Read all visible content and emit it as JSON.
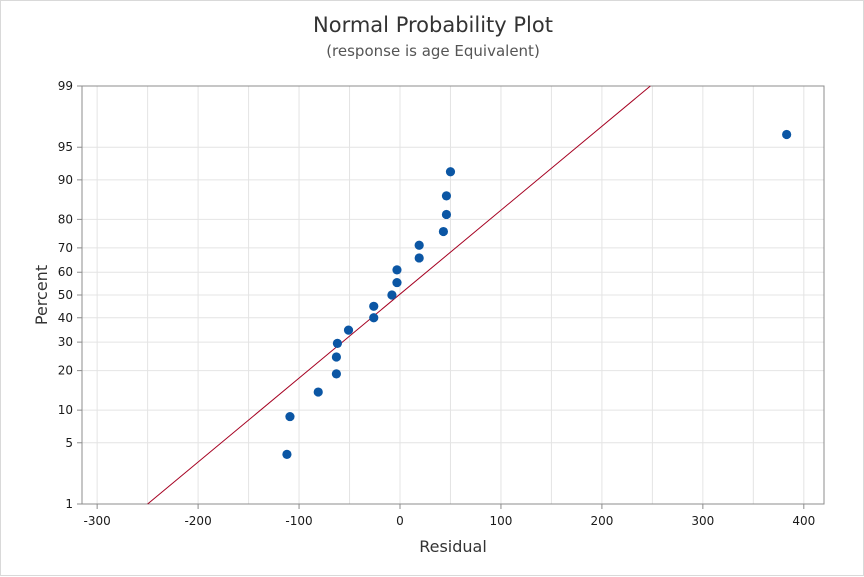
{
  "chart_data": {
    "type": "scatter",
    "title": "Normal Probability Plot",
    "subtitle": "(response is age Equivalent)",
    "xlabel": "Residual",
    "ylabel": "Percent",
    "xlim": [
      -315,
      420
    ],
    "ylim": [
      1,
      99
    ],
    "y_scale": "normal-probability",
    "grid": true,
    "x_ticks": [
      -300,
      -200,
      -100,
      0,
      100,
      200,
      300,
      400
    ],
    "y_ticks": [
      1,
      5,
      10,
      20,
      30,
      40,
      50,
      60,
      70,
      80,
      90,
      95,
      99
    ],
    "points": [
      {
        "x": -112,
        "y": 3.8
      },
      {
        "x": -109,
        "y": 8.8
      },
      {
        "x": -81,
        "y": 14
      },
      {
        "x": -63,
        "y": 19
      },
      {
        "x": -63,
        "y": 24.5
      },
      {
        "x": -62,
        "y": 29.5
      },
      {
        "x": -51,
        "y": 34.8
      },
      {
        "x": -26,
        "y": 40
      },
      {
        "x": -26,
        "y": 45
      },
      {
        "x": -8,
        "y": 50
      },
      {
        "x": -3,
        "y": 55.5
      },
      {
        "x": -3,
        "y": 61
      },
      {
        "x": 19,
        "y": 66
      },
      {
        "x": 19,
        "y": 71
      },
      {
        "x": 43,
        "y": 76
      },
      {
        "x": 46,
        "y": 81.5
      },
      {
        "x": 46,
        "y": 86.5
      },
      {
        "x": 50,
        "y": 91.5
      },
      {
        "x": 383,
        "y": 96.3
      }
    ],
    "fit_line": {
      "x_at_1pct": -250,
      "x_at_99pct": 248
    },
    "colors": {
      "points": "#0b56a4",
      "line": "#a50021",
      "grid": "#e4e4e4",
      "axis": "#8c8c8c"
    }
  }
}
